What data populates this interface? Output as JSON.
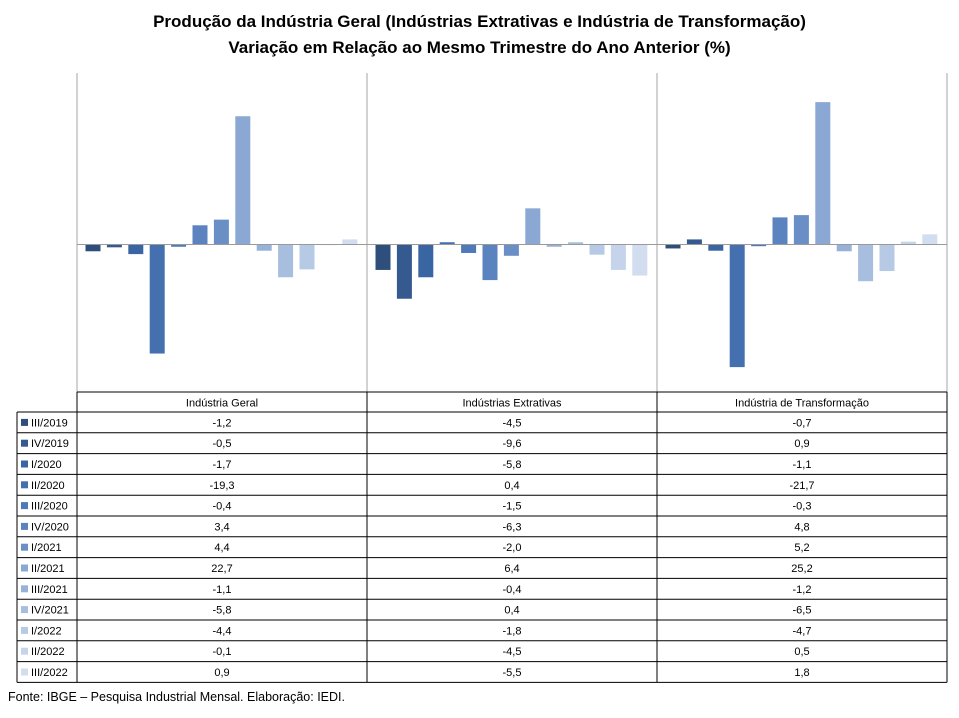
{
  "title": "Produção da Indústria Geral (Indústrias Extrativas e Indústria de Transformação)",
  "subtitle": "Variação em Relação ao Mesmo Trimestre do Ano Anterior (%)",
  "footer": "Fonte: IBGE – Pesquisa Industrial Mensal. Elaboração: IEDI.",
  "chart_data": {
    "type": "bar",
    "categories": [
      "Indústria Geral",
      "Indústrias Extrativas",
      "Indústria de Transformação"
    ],
    "series": [
      {
        "name": "III/2019",
        "values": [
          -1.2,
          -4.5,
          -0.7
        ],
        "display": [
          "-1,2",
          "-4,5",
          "-0,7"
        ],
        "color": "#2e4e7c"
      },
      {
        "name": "IV/2019",
        "values": [
          -0.5,
          -9.6,
          0.9
        ],
        "display": [
          "-0,5",
          "-9,6",
          "0,9"
        ],
        "color": "#345a90"
      },
      {
        "name": "I/2020",
        "values": [
          -1.7,
          -5.8,
          -1.1
        ],
        "display": [
          "-1,7",
          "-5,8",
          "-1,1"
        ],
        "color": "#3a65a3"
      },
      {
        "name": "II/2020",
        "values": [
          -19.3,
          0.4,
          -21.7
        ],
        "display": [
          "-19,3",
          "0,4",
          "-21,7"
        ],
        "color": "#4570b0"
      },
      {
        "name": "III/2020",
        "values": [
          -0.4,
          -1.5,
          -0.3
        ],
        "display": [
          "-0,4",
          "-1,5",
          "-0,3"
        ],
        "color": "#4f79b8"
      },
      {
        "name": "IV/2020",
        "values": [
          3.4,
          -6.3,
          4.8
        ],
        "display": [
          "3,4",
          "-6,3",
          "4,8"
        ],
        "color": "#5b83bf"
      },
      {
        "name": "I/2021",
        "values": [
          4.4,
          -2.0,
          5.2
        ],
        "display": [
          "4,4",
          "-2,0",
          "5,2"
        ],
        "color": "#6a8fc6"
      },
      {
        "name": "II/2021",
        "values": [
          22.7,
          6.4,
          25.2
        ],
        "display": [
          "22,7",
          "6,4",
          "25,2"
        ],
        "color": "#8aa8d3"
      },
      {
        "name": "III/2021",
        "values": [
          -1.1,
          -0.4,
          -1.2
        ],
        "display": [
          "-1,1",
          "-0,4",
          "-1,2"
        ],
        "color": "#97b1d8"
      },
      {
        "name": "IV/2021",
        "values": [
          -5.8,
          0.4,
          -6.5
        ],
        "display": [
          "-5,8",
          "0,4",
          "-6,5"
        ],
        "color": "#a8bedf"
      },
      {
        "name": "I/2022",
        "values": [
          -4.4,
          -1.8,
          -4.7
        ],
        "display": [
          "-4,4",
          "-1,8",
          "-4,7"
        ],
        "color": "#b6c9e5"
      },
      {
        "name": "II/2022",
        "values": [
          -0.1,
          -4.5,
          0.5
        ],
        "display": [
          "-0,1",
          "-4,5",
          "0,5"
        ],
        "color": "#c6d4eb"
      },
      {
        "name": "III/2022",
        "values": [
          0.9,
          -5.5,
          1.8
        ],
        "display": [
          "0,9",
          "-5,5",
          "1,8"
        ],
        "color": "#d2ddef"
      }
    ],
    "ylim": [
      -22,
      25.2
    ],
    "grid": false,
    "legend": "data-table"
  }
}
